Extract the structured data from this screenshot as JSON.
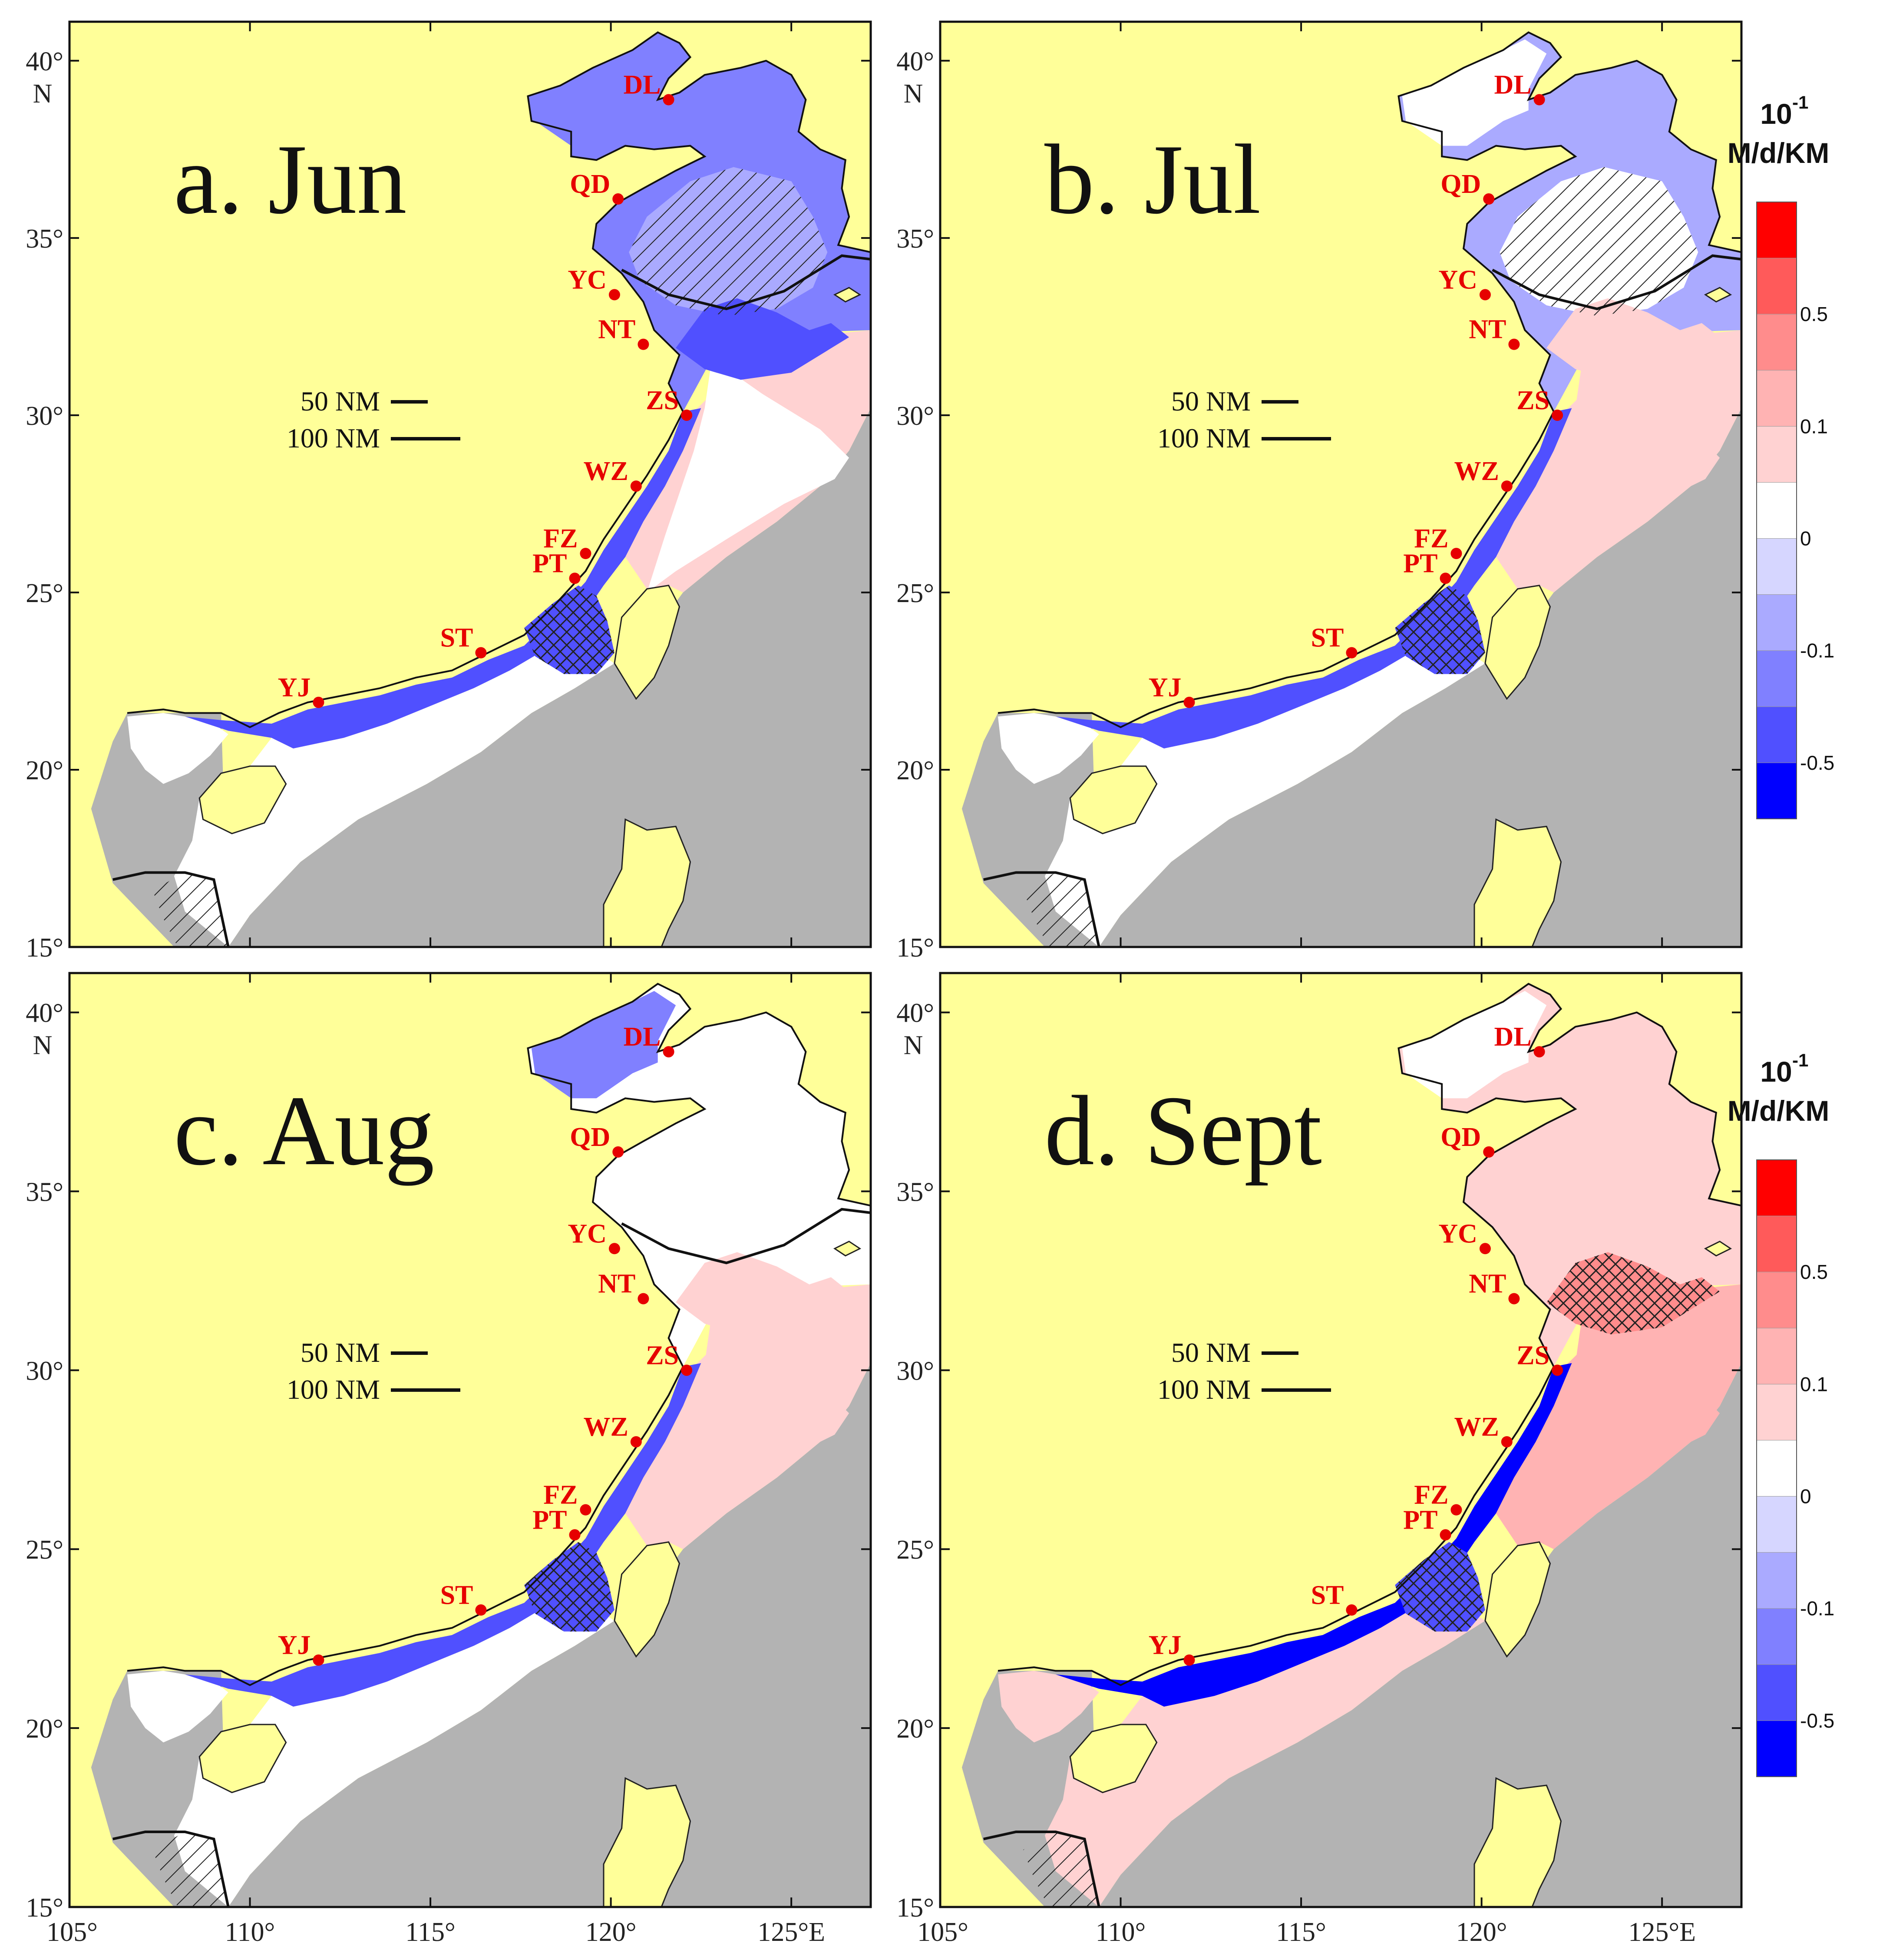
{
  "figure": {
    "panels": [
      {
        "id": "a",
        "title": "a. Jun"
      },
      {
        "id": "b",
        "title": "b. Jul"
      },
      {
        "id": "c",
        "title": "c. Aug"
      },
      {
        "id": "d",
        "title": "d. Sept"
      }
    ],
    "x_ticks": [
      "105°",
      "110°",
      "115°",
      "120°",
      "125°E"
    ],
    "y_ticks": [
      "15°",
      "20°",
      "25°",
      "30°",
      "35°",
      "40°"
    ],
    "y_top_letter": "N",
    "scale_bar": {
      "short_label": "50 NM",
      "long_label": "100 NM"
    },
    "cities": [
      {
        "code": "DL",
        "lon": 121.6,
        "lat": 38.9
      },
      {
        "code": "QD",
        "lon": 120.2,
        "lat": 36.1
      },
      {
        "code": "YC",
        "lon": 120.1,
        "lat": 33.4
      },
      {
        "code": "NT",
        "lon": 120.9,
        "lat": 32.0
      },
      {
        "code": "ZS",
        "lon": 122.1,
        "lat": 30.0
      },
      {
        "code": "WZ",
        "lon": 120.7,
        "lat": 28.0
      },
      {
        "code": "FZ",
        "lon": 119.3,
        "lat": 26.1
      },
      {
        "code": "PT",
        "lon": 119.0,
        "lat": 25.4
      },
      {
        "code": "ST",
        "lon": 116.4,
        "lat": 23.3
      },
      {
        "code": "YJ",
        "lon": 111.9,
        "lat": 21.9
      }
    ],
    "colorbar": {
      "unit_base": "10",
      "unit_exp": "-1",
      "unit_rest": "M/d/KM",
      "labels": [
        "0.5",
        "0.1",
        "0",
        "-0.1",
        "-0.5"
      ],
      "colors": [
        "#ff0000",
        "#ff5a5a",
        "#ff8c8c",
        "#ffb3b3",
        "#ffd2d2",
        "#ffffff",
        "#d6d6ff",
        "#aaaaff",
        "#8080ff",
        "#5050ff",
        "#0000ff"
      ]
    },
    "colors": {
      "land": "#ffff99",
      "deep_sea": "#b3b3b3",
      "city_dot": "#e60000"
    }
  }
}
